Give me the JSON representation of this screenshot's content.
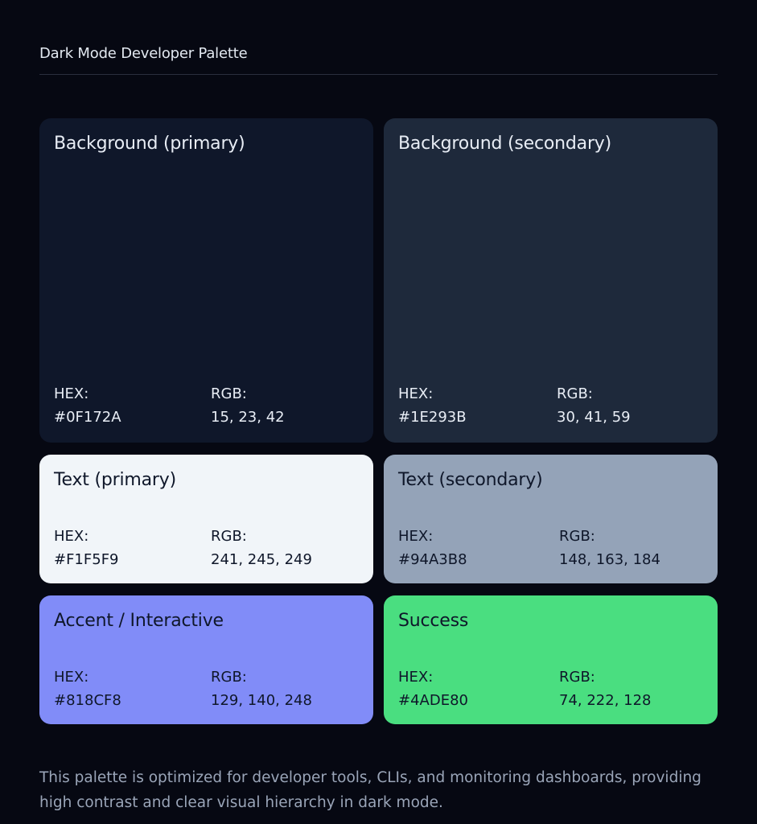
{
  "header": {
    "title": "Dark Mode Developer Palette"
  },
  "labels": {
    "hex": "HEX:",
    "rgb": "RGB:"
  },
  "swatches": [
    {
      "name": "Background (primary)",
      "hex": "#0F172A",
      "rgb": "15, 23, 42",
      "color": "#0F172A"
    },
    {
      "name": "Background (secondary)",
      "hex": "#1E293B",
      "rgb": "30, 41, 59",
      "color": "#1E293B"
    },
    {
      "name": "Text (primary)",
      "hex": "#F1F5F9",
      "rgb": "241, 245, 249",
      "color": "#F1F5F9"
    },
    {
      "name": "Text (secondary)",
      "hex": "#94A3B8",
      "rgb": "148, 163, 184",
      "color": "#94A3B8"
    },
    {
      "name": "Accent / Interactive",
      "hex": "#818CF8",
      "rgb": "129, 140, 248",
      "color": "#818CF8"
    },
    {
      "name": "Success",
      "hex": "#4ADE80",
      "rgb": "74, 222, 128",
      "color": "#4ADE80"
    }
  ],
  "footer": {
    "text": "This palette is optimized for developer tools, CLIs, and monitoring dashboards, providing high contrast and clear visual hierarchy in dark mode."
  }
}
